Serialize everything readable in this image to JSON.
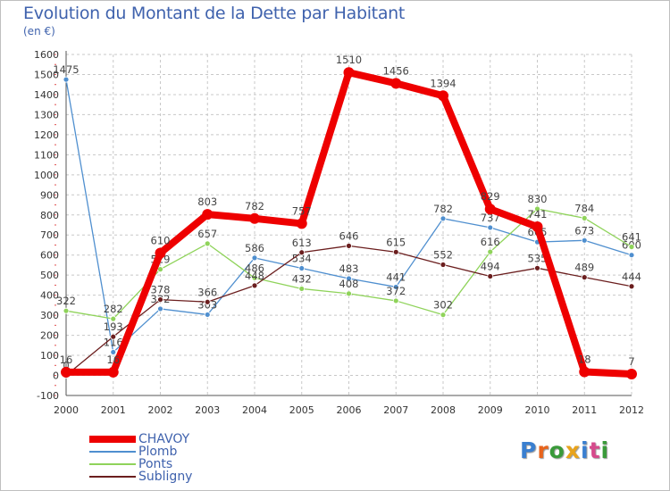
{
  "chart_data": {
    "type": "line",
    "title": "Evolution du Montant de la Dette par Habitant",
    "subtitle": "(en €)",
    "xlabel": "",
    "ylabel": "",
    "ylim": [
      -100,
      1600
    ],
    "yticks": [
      -100,
      0,
      100,
      200,
      300,
      400,
      500,
      600,
      700,
      800,
      900,
      1000,
      1100,
      1200,
      1300,
      1400,
      1500,
      1600
    ],
    "categories": [
      "2000",
      "2001",
      "2002",
      "2003",
      "2004",
      "2005",
      "2006",
      "2007",
      "2008",
      "2009",
      "2010",
      "2011",
      "2012"
    ],
    "grid": true,
    "legend_position": "bottom-left",
    "series": [
      {
        "name": "Plomb",
        "color": "#4f8fcf",
        "values": [
          1475,
          116,
          332,
          303,
          586,
          534,
          483,
          441,
          782,
          737,
          665,
          673,
          600
        ]
      },
      {
        "name": "Ponts",
        "color": "#8fd35a",
        "values": [
          322,
          282,
          529,
          657,
          486,
          432,
          408,
          372,
          302,
          616,
          830,
          784,
          641
        ]
      },
      {
        "name": "Subligny",
        "color": "#6b1e1e",
        "values": [
          0,
          193,
          378,
          366,
          448,
          613,
          646,
          615,
          552,
          494,
          535,
          489,
          444
        ]
      },
      {
        "name": "CHAVOY",
        "color": "#ee0000",
        "values": [
          16,
          16,
          610,
          803,
          782,
          757,
          1510,
          1456,
          1394,
          829,
          741,
          18,
          7
        ]
      }
    ]
  },
  "legend": {
    "items": [
      {
        "label": "CHAVOY",
        "color": "#ee0000"
      },
      {
        "label": "Plomb",
        "color": "#4f8fcf"
      },
      {
        "label": "Ponts",
        "color": "#8fd35a"
      },
      {
        "label": "Subligny",
        "color": "#6b1e1e"
      }
    ]
  },
  "logo": {
    "letters": [
      "P",
      "r",
      "o",
      "x",
      "i",
      "t",
      "i"
    ],
    "colors": [
      "#3a7fd0",
      "#e8641c",
      "#3a9a3a",
      "#e8a31c",
      "#3a7fd0",
      "#d64a8c",
      "#3a9a3a"
    ]
  }
}
